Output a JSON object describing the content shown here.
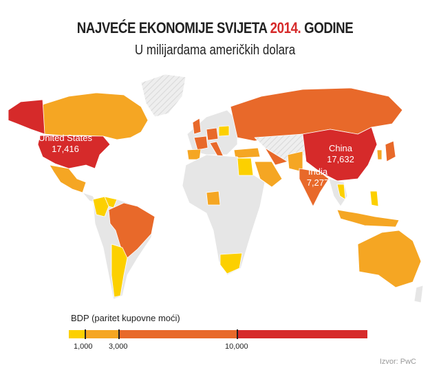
{
  "title": {
    "prefix": "NAJVEĆE EKONOMIJE SVIJETA ",
    "year": "2014.",
    "suffix": " GODINE"
  },
  "subtitle": "U milijardama američkih dolara",
  "colors": {
    "no_data": "#e6e6e6",
    "lt_1000": "#fcd000",
    "1000_3000": "#f5a623",
    "3000_10000": "#e8692a",
    "gt_10000": "#d62a2a",
    "title_accent": "#d62a2a"
  },
  "labels": [
    {
      "country": "United States",
      "value": "17,416"
    },
    {
      "country": "China",
      "value": "17,632"
    },
    {
      "country": "India",
      "value": "7,277"
    }
  ],
  "legend": {
    "title": "BDP (paritet kupovne moći)",
    "ticks": [
      "1,000",
      "3,000",
      "10,000"
    ]
  },
  "source": "Izvor: PwC"
}
